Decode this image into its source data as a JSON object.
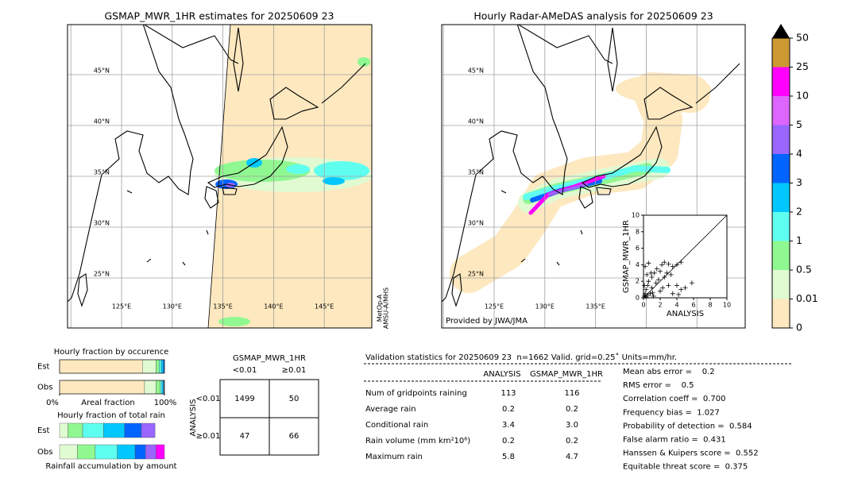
{
  "maps": [
    {
      "title": "GSMAP_MWR_1HR estimates for 20250609 23",
      "lat_labels": [
        "45°N",
        "40°N",
        "35°N",
        "30°N",
        "25°N"
      ],
      "lon_labels": [
        "125°E",
        "130°E",
        "135°E",
        "140°E",
        "145°E"
      ],
      "sensor": [
        "MetOp-A",
        "AMSU-A/MHS"
      ]
    },
    {
      "title": "Hourly Radar-AMeDAS analysis for 20250609 23",
      "lat_labels": [
        "45°N",
        "40°N",
        "35°N",
        "30°N",
        "25°N"
      ],
      "lon_labels": [
        "125°E",
        "130°E",
        "135°E"
      ],
      "credit": "Provided by JWA/JMA"
    }
  ],
  "chart_data": [
    {
      "type": "colorbar",
      "yticks": [
        0,
        0.01,
        0.5,
        1,
        2,
        3,
        4,
        5,
        10,
        25,
        50
      ],
      "colors": [
        "#fde8bf",
        "#e0fad2",
        "#90f890",
        "#5ffff0",
        "#00c8ff",
        "#0064ff",
        "#9966ff",
        "#dd66ff",
        "#ff00ff",
        "#cc9933"
      ],
      "extend_color": "#000000"
    },
    {
      "type": "scatter",
      "xlabel": "ANALYSIS",
      "ylabel": "GSMAP_MWR_1HR",
      "color": "#000000",
      "x": [
        0.1,
        0.2,
        0.3,
        0.5,
        0.5,
        0.6,
        0.8,
        1.0,
        1.0,
        1.2,
        1.3,
        1.5,
        1.6,
        1.8,
        2.0,
        2.0,
        2.2,
        2.5,
        2.8,
        3.0,
        3.0,
        3.5,
        3.5,
        4.0,
        4.2,
        4.5,
        5.0,
        5.8,
        0.2,
        0.4,
        0.1,
        0.3,
        0.6,
        2.5,
        4.0,
        4.5,
        1.1,
        2.3,
        0.9,
        3.3
      ],
      "values": [
        0.2,
        0.5,
        1.0,
        0.3,
        1.5,
        2.0,
        0.5,
        1.2,
        2.5,
        0.2,
        3.0,
        1.8,
        3.5,
        2.2,
        0.8,
        3.2,
        4.0,
        2.5,
        3.0,
        1.5,
        4.1,
        3.8,
        0.5,
        1.5,
        0.4,
        1.0,
        1.2,
        1.8,
        3.8,
        2.8,
        1.5,
        0.1,
        4.2,
        4.3,
        4.0,
        4.3,
        0.6,
        1.2,
        3.0,
        2.8
      ],
      "xlim": [
        0,
        10
      ],
      "ylim": [
        0,
        10
      ],
      "xticks": [
        0,
        2,
        4,
        6,
        8,
        10
      ],
      "yticks": [
        0,
        2,
        4,
        6,
        8,
        10
      ]
    },
    {
      "type": "stacked-bar",
      "title": "Hourly fraction by occurence",
      "categories": [
        "Est",
        "Obs"
      ],
      "xlabel": "Areal fraction",
      "xlim": [
        0,
        100
      ],
      "xticks": [
        {
          "value": 0,
          "label": "0%"
        },
        {
          "value": 100,
          "label": "100%"
        }
      ],
      "series": [
        {
          "color": "#fde8bf",
          "values": [
            79,
            81
          ]
        },
        {
          "color": "#e0fad2",
          "values": [
            13,
            11
          ]
        },
        {
          "color": "#90f890",
          "values": [
            3,
            4
          ]
        },
        {
          "color": "#5ffff0",
          "values": [
            2,
            1.5
          ]
        },
        {
          "color": "#00c8ff",
          "values": [
            2,
            1.5
          ]
        },
        {
          "color": "#0064ff",
          "values": [
            1,
            0.5
          ]
        },
        {
          "color": "#9966ff",
          "values": [
            0,
            0.5
          ]
        }
      ]
    },
    {
      "type": "stacked-bar",
      "title": "Hourly fraction of total rain",
      "categories": [
        "Est",
        "Obs"
      ],
      "xlabel": "Rainfall accumulation by amount",
      "xlim": [
        0,
        100
      ],
      "series": [
        {
          "color": "#e0fad2",
          "values": [
            8,
            17
          ]
        },
        {
          "color": "#90f890",
          "values": [
            14,
            17
          ]
        },
        {
          "color": "#5ffff0",
          "values": [
            20,
            21
          ]
        },
        {
          "color": "#00c8ff",
          "values": [
            20,
            17
          ]
        },
        {
          "color": "#0064ff",
          "values": [
            16,
            10
          ]
        },
        {
          "color": "#9966ff",
          "values": [
            13,
            10
          ]
        },
        {
          "color": "#ff00ff",
          "values": [
            0,
            8
          ]
        }
      ]
    }
  ],
  "contingency": {
    "title": "GSMAP_MWR_1HR",
    "columns": [
      "<0.01",
      "≥0.01"
    ],
    "row_title": "ANALYSIS",
    "rows": [
      "<0.01",
      "≥0.01"
    ],
    "cells": [
      [
        1499,
        50
      ],
      [
        47,
        66
      ]
    ]
  },
  "validation": {
    "header": "Validation statistics for 20250609 23  n=1662 Valid. grid=0.25˚ Units=mm/hr.",
    "columns": [
      "ANALYSIS",
      "GSMAP_MWR_1HR"
    ],
    "rows": [
      [
        "Num of gridpoints raining",
        "113",
        "116"
      ],
      [
        "Average rain",
        "0.2",
        "0.2"
      ],
      [
        "Conditional rain",
        "3.4",
        "3.0"
      ],
      [
        "Rain volume (mm km²10⁶)",
        "0.2",
        "0.2"
      ],
      [
        "Maximum rain",
        "5.8",
        "4.7"
      ]
    ],
    "scores": [
      "Mean abs error =    0.2",
      "RMS error =    0.5",
      "Correlation coeff =  0.700",
      "Frequency bias =  1.027",
      "Probability of detection =  0.584",
      "False alarm ratio =  0.431",
      "Hanssen & Kuipers score =  0.552",
      "Equitable threat score =  0.375"
    ]
  }
}
